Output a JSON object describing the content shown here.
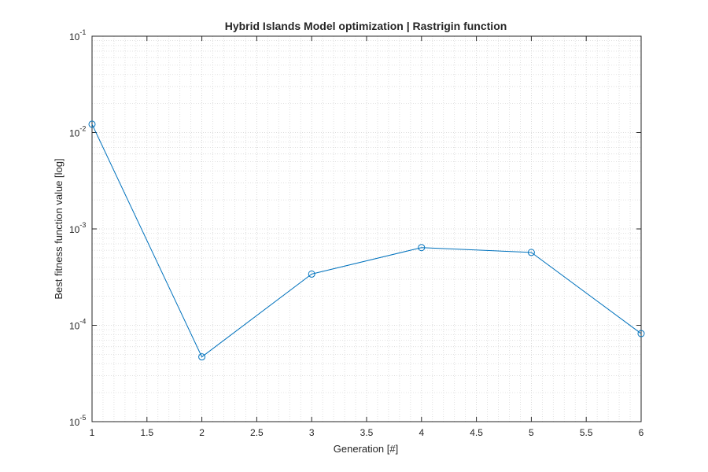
{
  "chart_data": {
    "type": "line",
    "title": "Hybrid Islands Model optimization | Rastrigin function",
    "xlabel": "Generation [#]",
    "ylabel": "Best fitness function value [log]",
    "xlim": [
      1,
      6
    ],
    "ylim": [
      1e-05,
      0.1
    ],
    "yscale": "log",
    "grid": true,
    "minor_grid": true,
    "x_ticks": [
      "1",
      "1.5",
      "2",
      "2.5",
      "3",
      "3.5",
      "4",
      "4.5",
      "5",
      "5.5",
      "6"
    ],
    "y_ticks": [
      {
        "base": "10",
        "exp": "-5"
      },
      {
        "base": "10",
        "exp": "-4"
      },
      {
        "base": "10",
        "exp": "-3"
      },
      {
        "base": "10",
        "exp": "-2"
      },
      {
        "base": "10",
        "exp": "-1"
      }
    ],
    "series": [
      {
        "color": "#0072bd",
        "marker": "circle",
        "x": [
          1,
          2,
          3,
          4,
          5,
          6
        ],
        "y": [
          0.0122,
          4.7e-05,
          0.00034,
          0.00064,
          0.00057,
          8.2e-05
        ]
      }
    ]
  }
}
